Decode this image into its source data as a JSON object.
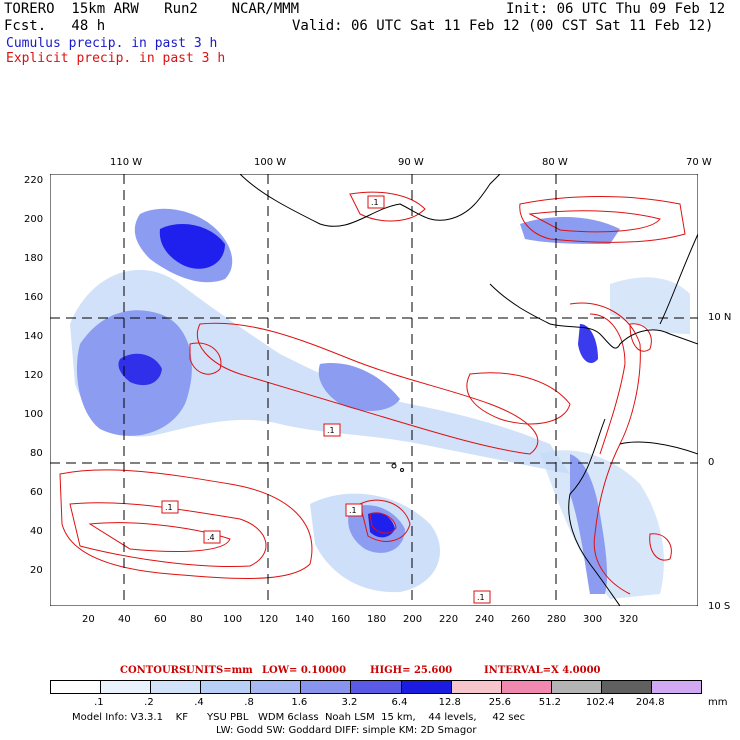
{
  "header": {
    "title": "TORERO  15km ARW   Run2    NCAR/MMM",
    "forecast": "Fcst.   48 h",
    "init": "Init: 06 UTC Thu 09 Feb 12",
    "valid": "Valid: 06 UTC Sat 11 Feb 12 (00 CST Sat 11 Feb 12)"
  },
  "legend": {
    "cumulus": "Cumulus precip. in past 3 h",
    "explicit": "Explicit precip. in past 3 h"
  },
  "map": {
    "top_lon_labels": [
      "110 W",
      "100 W",
      "90 W",
      "80 W",
      "70 W"
    ],
    "right_lat_labels": [
      "10 N",
      "0",
      "10 S"
    ],
    "y_ticks": [
      "220",
      "200",
      "180",
      "160",
      "140",
      "120",
      "100",
      "80",
      "60",
      "40",
      "20"
    ],
    "x_ticks": [
      "20",
      "40",
      "60",
      "80",
      "100",
      "120",
      "140",
      "160",
      "180",
      "200",
      "220",
      "240",
      "260",
      "280",
      "300",
      "320"
    ],
    "contour_labels": [
      ".1",
      ".1",
      ".1",
      ".1",
      ".4",
      ".1"
    ],
    "colors": {
      "cumulus_light": "#c8dcf8",
      "cumulus_mid": "#8c9cf0",
      "cumulus_dark": "#2020ee",
      "explicit": "#dd1111",
      "land": "#000000"
    }
  },
  "contours_line": {
    "contours": "CONTOURS:",
    "units": "UNITS=mm",
    "low": "LOW= 0.10000",
    "high": "HIGH= 25.600",
    "interval": "INTERVAL=X 4.0000"
  },
  "colorbar": {
    "colors": [
      "#ffffff",
      "#eaf2fd",
      "#d2e2f9",
      "#b8d0f6",
      "#a8b8f2",
      "#8894ee",
      "#5a5ae6",
      "#1c1ce0",
      "#f6c6cc",
      "#f088b0",
      "#b4b4b4",
      "#606060",
      "#d2a8f2"
    ],
    "labels": [
      ".1",
      ".2",
      ".4",
      ".8",
      "1.6",
      "3.2",
      "6.4",
      "12.8",
      "25.6",
      "51.2",
      "102.4",
      "204.8"
    ],
    "unit": "mm"
  },
  "model_info": {
    "line1": "Model Info: V3.3.1    KF      YSU PBL   WDM 6class  Noah LSM  15 km,    44 levels,     42 sec",
    "line2": "LW: Godd SW: Goddard DIFF: simple KM: 2D Smagor"
  }
}
